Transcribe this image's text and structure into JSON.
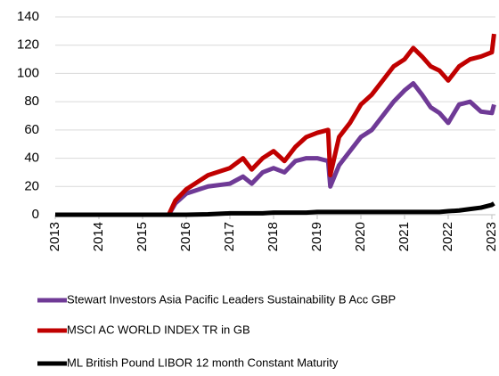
{
  "chart_data": {
    "type": "line",
    "x": [
      2013,
      2015.5,
      2015.6,
      2015.75,
      2016,
      2016.5,
      2017,
      2017.3,
      2017.5,
      2017.75,
      2018,
      2018.25,
      2018.5,
      2018.75,
      2019,
      2019.25,
      2019.3,
      2019.5,
      2019.75,
      2020,
      2020.25,
      2020.5,
      2020.75,
      2021,
      2021.2,
      2021.4,
      2021.6,
      2021.8,
      2022,
      2022.25,
      2022.5,
      2022.75,
      2023,
      2023.05
    ],
    "series": [
      {
        "name": "Stewart Investors Asia Pacific Leaders Sustainability B Acc GBP",
        "color": "#6f3a96",
        "values": [
          0,
          0,
          0,
          8,
          15,
          20,
          22,
          27,
          22,
          30,
          33,
          30,
          38,
          40,
          40,
          38,
          20,
          35,
          45,
          55,
          60,
          70,
          80,
          88,
          93,
          85,
          76,
          72,
          65,
          78,
          80,
          73,
          72,
          78
        ]
      },
      {
        "name": "MSCI AC WORLD INDEX TR in GB",
        "color": "#c00000",
        "values": [
          0,
          0,
          0,
          10,
          18,
          28,
          33,
          40,
          32,
          40,
          45,
          38,
          48,
          55,
          58,
          60,
          28,
          55,
          65,
          78,
          85,
          95,
          105,
          110,
          118,
          112,
          105,
          102,
          95,
          105,
          110,
          112,
          115,
          128
        ]
      },
      {
        "name": "ML British Pound LIBOR 12 month Constant Maturity",
        "color": "#000000",
        "values": [
          0,
          0,
          0,
          0,
          0,
          0.3,
          1,
          1,
          1,
          1,
          1.5,
          1.5,
          1.5,
          1.5,
          2,
          2,
          2,
          2,
          2,
          2,
          2,
          2,
          2,
          2,
          2,
          2,
          2,
          2,
          2.5,
          3,
          4,
          5,
          7,
          8
        ]
      }
    ],
    "xlim": [
      2013,
      2023
    ],
    "xticks": [
      2013,
      2014,
      2015,
      2016,
      2017,
      2018,
      2019,
      2020,
      2021,
      2022,
      2023
    ],
    "ylim": [
      0,
      140
    ],
    "yticks": [
      0,
      20,
      40,
      60,
      80,
      100,
      120,
      140
    ],
    "grid": true
  }
}
